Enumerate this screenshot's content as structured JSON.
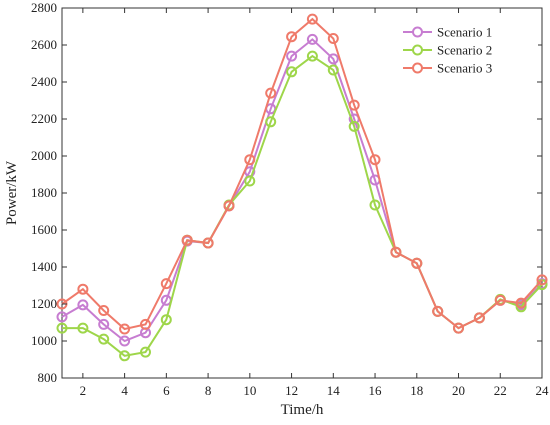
{
  "chart_data": {
    "type": "line",
    "title": "",
    "xlabel": "Time/h",
    "ylabel": "Power/kW",
    "xlim": [
      1,
      24
    ],
    "ylim": [
      800,
      2800
    ],
    "xticks": [
      2,
      4,
      6,
      8,
      10,
      12,
      14,
      16,
      18,
      20,
      22,
      24
    ],
    "yticks": [
      800,
      1000,
      1200,
      1400,
      1600,
      1800,
      2000,
      2200,
      2400,
      2600,
      2800
    ],
    "grid": false,
    "legend_position": "top-right",
    "x": [
      1,
      2,
      3,
      4,
      5,
      6,
      7,
      8,
      9,
      10,
      11,
      12,
      13,
      14,
      15,
      16,
      17,
      18,
      19,
      20,
      21,
      22,
      23,
      24
    ],
    "series": [
      {
        "name": "Scenario 1",
        "color": "#c77dd1",
        "values": [
          1130,
          1195,
          1090,
          1000,
          1045,
          1220,
          1540,
          1530,
          1730,
          1915,
          2255,
          2540,
          2630,
          2525,
          2200,
          1870,
          1480,
          1420,
          1160,
          1070,
          1125,
          1220,
          1195,
          1310
        ]
      },
      {
        "name": "Scenario 2",
        "color": "#9ed64a",
        "values": [
          1070,
          1070,
          1010,
          920,
          940,
          1115,
          1545,
          1530,
          1735,
          1865,
          2185,
          2455,
          2540,
          2465,
          2160,
          1735,
          1480,
          1420,
          1160,
          1070,
          1125,
          1225,
          1185,
          1305
        ]
      },
      {
        "name": "Scenario 3",
        "color": "#ef7a6a",
        "values": [
          1200,
          1280,
          1165,
          1065,
          1090,
          1310,
          1545,
          1530,
          1730,
          1980,
          2340,
          2645,
          2740,
          2635,
          2275,
          1980,
          1480,
          1420,
          1160,
          1070,
          1125,
          1220,
          1205,
          1330
        ]
      }
    ]
  }
}
